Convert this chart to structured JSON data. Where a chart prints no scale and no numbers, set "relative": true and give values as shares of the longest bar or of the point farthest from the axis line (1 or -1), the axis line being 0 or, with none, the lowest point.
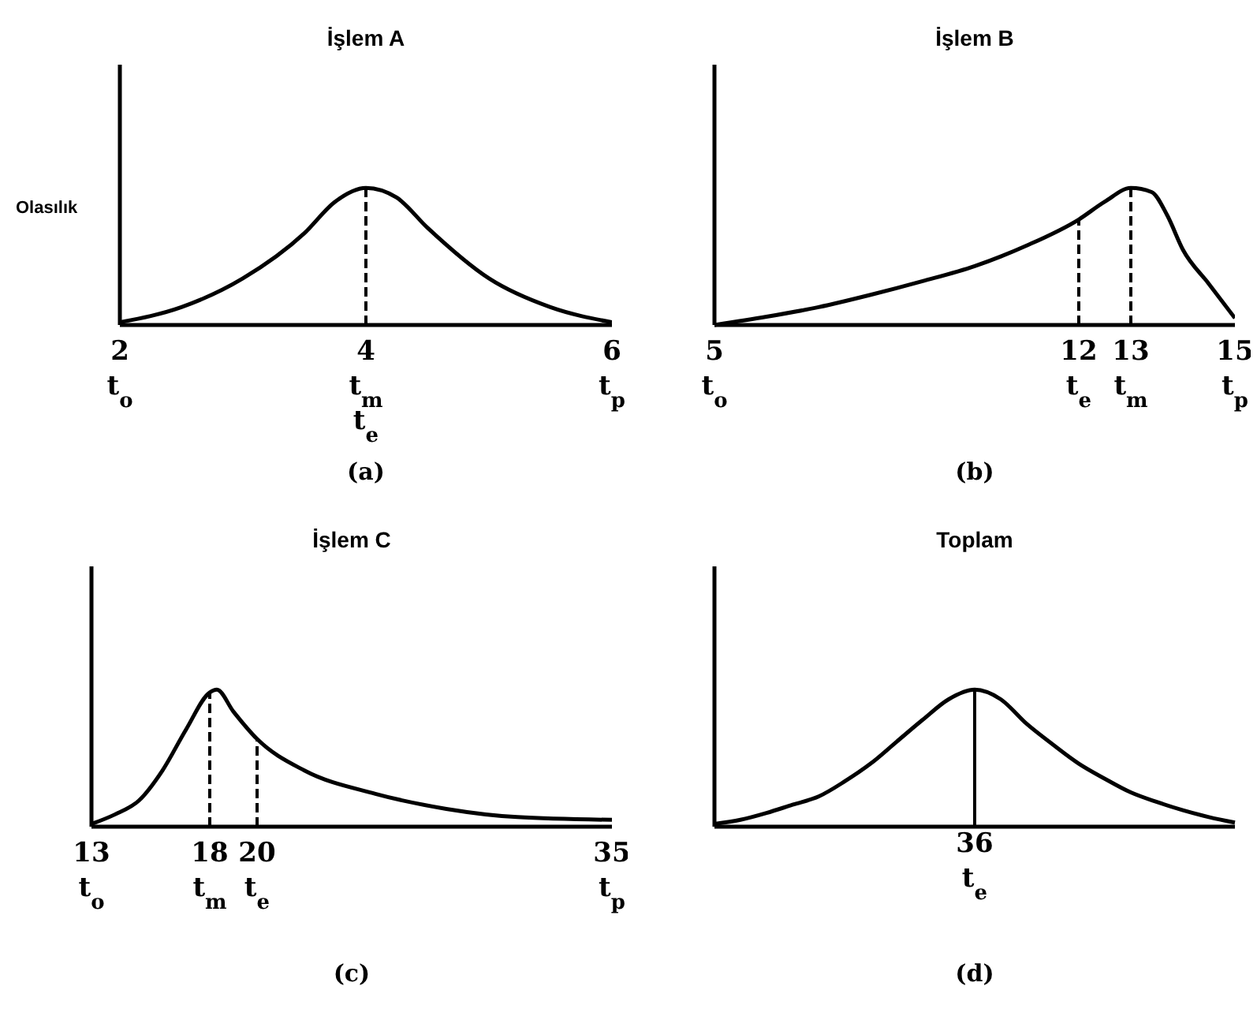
{
  "chart_data": [
    {
      "type": "line",
      "title": "İşlem A",
      "ylabel": "Olasılık",
      "xlabel": "(a)",
      "relative": true,
      "x": [
        2,
        2.5,
        3,
        3.5,
        3.75,
        4,
        4.25,
        4.5,
        5,
        5.5,
        6
      ],
      "xlim": [
        2,
        6
      ],
      "xticks": [
        {
          "value": 2,
          "label": "2\nt$_{o}$"
        },
        {
          "value": 4,
          "label": "4\nt$_{m}$\nt$_{e}$"
        },
        {
          "value": 6,
          "label": "6\nt$_{p}$"
        }
      ],
      "series": [
        {
          "color": "#000000",
          "values": [
            0.02,
            0.13,
            0.34,
            0.67,
            0.9,
            1,
            0.93,
            0.71,
            0.34,
            0.13,
            0.02
          ]
        }
      ],
      "ref_lines": [
        {
          "axis": "x",
          "value": 4,
          "line_style": "dashed"
        }
      ]
    },
    {
      "type": "line",
      "title": "İşlem B",
      "xlabel": "(b)",
      "relative": true,
      "x": [
        5,
        6,
        7,
        8,
        9,
        10,
        11,
        12,
        12.5,
        13,
        13.4,
        13.7,
        14,
        14.5,
        15
      ],
      "xlim": [
        5,
        15
      ],
      "xticks": [
        {
          "value": 5,
          "label": "5\nt$_{o}$"
        },
        {
          "value": 12,
          "label": "12\nt$_{e}$"
        },
        {
          "value": 13,
          "label": "13\nt$_{m}$"
        },
        {
          "value": 15,
          "label": "15\nt$_{p}$"
        }
      ],
      "series": [
        {
          "color": "#000000",
          "values": [
            0,
            0.06,
            0.13,
            0.22,
            0.32,
            0.43,
            0.58,
            0.77,
            0.9,
            1,
            0.97,
            0.8,
            0.55,
            0.3,
            0.05
          ]
        }
      ],
      "ref_lines": [
        {
          "axis": "x",
          "value": 12,
          "line_style": "dashed"
        },
        {
          "axis": "x",
          "value": 13,
          "line_style": "dashed"
        }
      ]
    },
    {
      "type": "line",
      "title": "İşlem C",
      "xlabel": "(c)",
      "relative": true,
      "x": [
        13,
        14,
        15,
        16,
        17,
        18,
        18.3,
        19,
        20,
        22,
        25,
        28,
        31,
        35
      ],
      "xlim": [
        13,
        35
      ],
      "xticks": [
        {
          "value": 13,
          "label": "13\nt$_{o}$"
        },
        {
          "value": 18,
          "label": "18\nt$_{m}$"
        },
        {
          "value": 20,
          "label": "20\nt$_{e}$"
        },
        {
          "value": 35,
          "label": "35\nt$_{p}$"
        }
      ],
      "series": [
        {
          "color": "#000000",
          "values": [
            0.02,
            0.09,
            0.19,
            0.41,
            0.71,
            0.98,
            1,
            0.84,
            0.64,
            0.41,
            0.24,
            0.13,
            0.07,
            0.05
          ]
        }
      ],
      "ref_lines": [
        {
          "axis": "x",
          "value": 18,
          "line_style": "dashed"
        },
        {
          "axis": "x",
          "value": 20,
          "line_style": "dashed"
        }
      ]
    },
    {
      "type": "line",
      "title": "Toplam",
      "xlabel": "(d)",
      "annotations": [
        "36\nt$_{e}$"
      ],
      "relative": true,
      "categories": [
        null,
        null,
        null,
        null,
        null,
        null,
        null,
        null,
        null,
        null,
        null,
        null,
        null,
        null,
        null,
        null,
        null,
        null,
        null,
        null,
        null
      ],
      "series": [
        {
          "color": "#000000",
          "values": [
            0.02,
            0.05,
            0.1,
            0.16,
            0.22,
            0.33,
            0.46,
            0.62,
            0.78,
            0.93,
            1,
            0.93,
            0.75,
            0.6,
            0.46,
            0.35,
            0.25,
            0.18,
            0.12,
            0.07,
            0.03
          ]
        }
      ]
    }
  ]
}
